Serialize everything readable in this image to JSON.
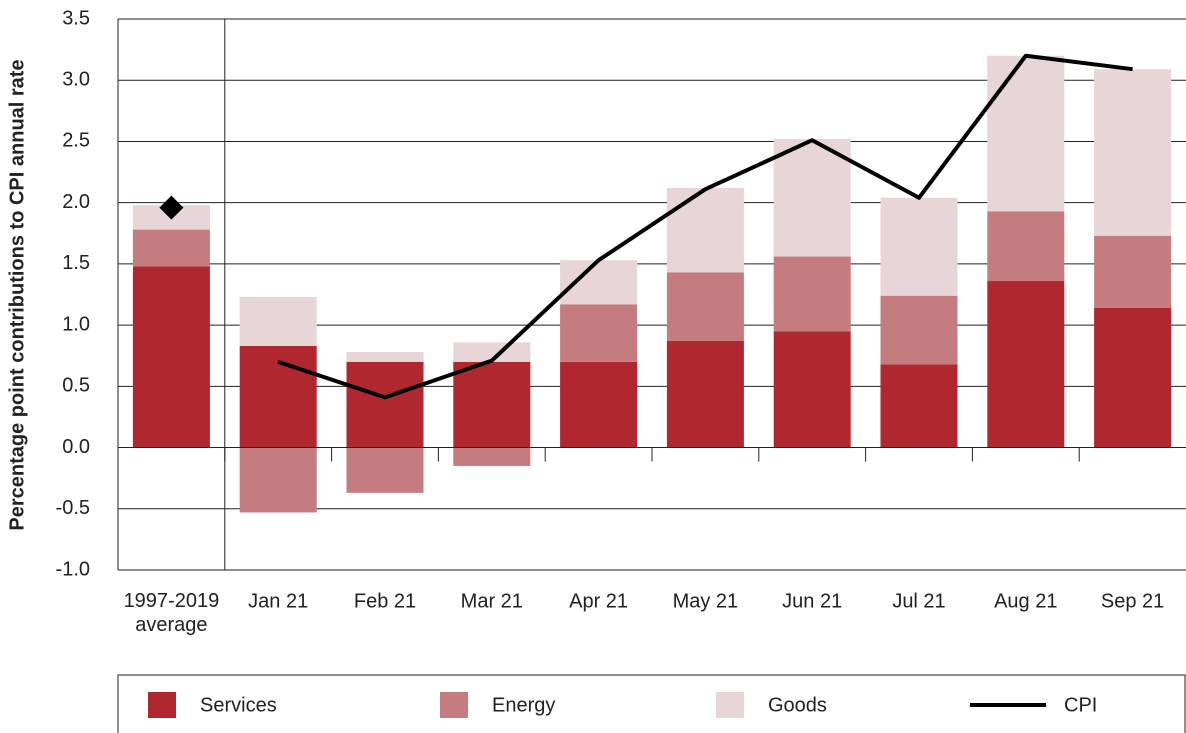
{
  "chart_data": {
    "type": "stacked_bar_line",
    "y_label": "Percentage point contributions to CPI annual rate",
    "categories": [
      "1997-2019 average",
      "Jan 21",
      "Feb 21",
      "Mar 21",
      "Apr 21",
      "May 21",
      "Jun 21",
      "Jul 21",
      "Aug 21",
      "Sep 21"
    ],
    "series": [
      {
        "name": "Services",
        "color": "#b0272f",
        "values": [
          1.48,
          0.83,
          0.7,
          0.7,
          0.7,
          0.87,
          0.95,
          0.68,
          1.36,
          1.14
        ]
      },
      {
        "name": "Energy",
        "color": "#c47c7e",
        "values": [
          0.3,
          -0.53,
          -0.37,
          -0.15,
          0.47,
          0.56,
          0.61,
          0.56,
          0.57,
          0.59
        ]
      },
      {
        "name": "Goods",
        "color": "#e8d5d7",
        "values": [
          0.2,
          0.4,
          0.08,
          0.16,
          0.36,
          0.69,
          0.96,
          0.8,
          1.27,
          1.36
        ]
      },
      {
        "name": "CPI",
        "type": "line",
        "color": "#000000",
        "values": [
          1.96,
          0.7,
          0.41,
          0.71,
          1.53,
          2.11,
          2.51,
          2.04,
          3.2,
          3.09
        ]
      }
    ],
    "ylim": [
      -1.0,
      3.5
    ],
    "yticks": [
      {
        "value": -1.0,
        "label": "-1.0"
      },
      {
        "value": -0.5,
        "label": "-0.5"
      },
      {
        "value": 0.0,
        "label": "0.0"
      },
      {
        "value": 0.5,
        "label": "0.5"
      },
      {
        "value": 1.0,
        "label": "1.0"
      },
      {
        "value": 1.5,
        "label": "1.5"
      },
      {
        "value": 2.0,
        "label": "2.0"
      },
      {
        "value": 2.5,
        "label": "2.5"
      },
      {
        "value": 3.0,
        "label": "3.0"
      },
      {
        "value": 3.5,
        "label": "3.5"
      }
    ],
    "grid": true,
    "legend": "bottom"
  }
}
